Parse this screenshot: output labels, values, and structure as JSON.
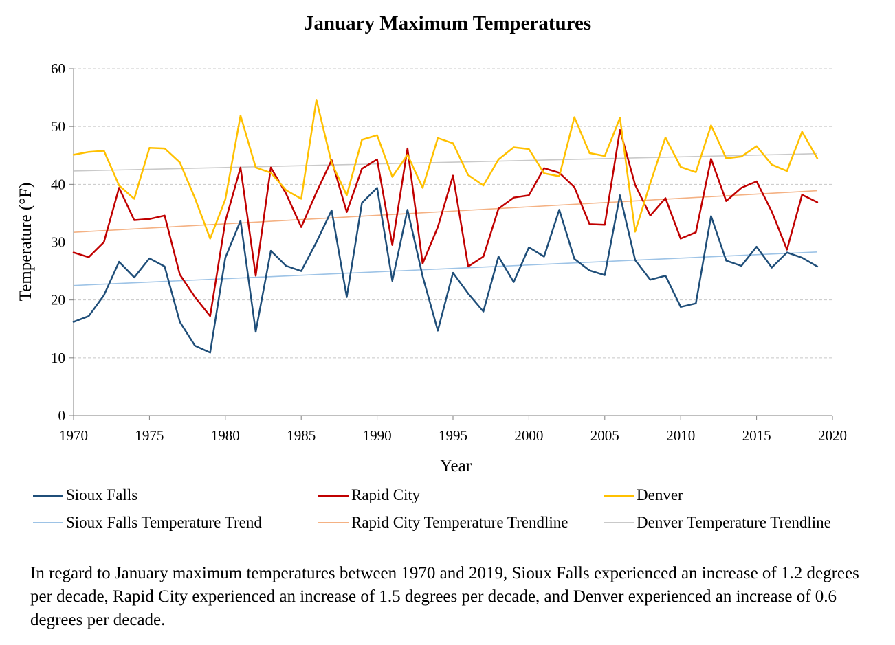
{
  "chart_data": {
    "type": "line",
    "title": "January Maximum Temperatures",
    "xlabel": "Year",
    "ylabel": "Temperature (°F)",
    "xlim": [
      1970,
      2020
    ],
    "ylim": [
      0,
      60
    ],
    "xticks": [
      1970,
      1975,
      1980,
      1985,
      1990,
      1995,
      2000,
      2005,
      2010,
      2015,
      2020
    ],
    "yticks": [
      0,
      10,
      20,
      30,
      40,
      50,
      60
    ],
    "grid": "horizontal dashed",
    "legend_position": "bottom",
    "x": [
      1970,
      1971,
      1972,
      1973,
      1974,
      1975,
      1976,
      1977,
      1978,
      1979,
      1980,
      1981,
      1982,
      1983,
      1984,
      1985,
      1986,
      1987,
      1988,
      1989,
      1990,
      1991,
      1992,
      1993,
      1994,
      1995,
      1996,
      1997,
      1998,
      1999,
      2000,
      2001,
      2002,
      2003,
      2004,
      2005,
      2006,
      2007,
      2008,
      2009,
      2010,
      2011,
      2012,
      2013,
      2014,
      2015,
      2016,
      2017,
      2018,
      2019
    ],
    "series": [
      {
        "name": "Sioux Falls",
        "color": "#1f4e79",
        "width": 2.5,
        "values": [
          16.2,
          17.2,
          20.8,
          26.6,
          23.9,
          27.2,
          25.8,
          16.2,
          12.1,
          10.9,
          27.3,
          33.7,
          14.5,
          28.5,
          25.9,
          25.0,
          30.0,
          35.5,
          20.5,
          36.8,
          39.4,
          23.3,
          35.6,
          24.1,
          14.7,
          24.7,
          21.1,
          18.0,
          27.5,
          23.1,
          29.1,
          27.5,
          35.6,
          27.1,
          25.1,
          24.3,
          38.1,
          26.9,
          23.5,
          24.2,
          18.8,
          19.4,
          34.5,
          26.8,
          25.9,
          29.2,
          25.6,
          28.2,
          27.3,
          25.8
        ]
      },
      {
        "name": "Rapid City",
        "color": "#c00000",
        "width": 2.5,
        "values": [
          28.2,
          27.4,
          30.0,
          39.4,
          33.8,
          34.0,
          34.6,
          24.4,
          20.5,
          17.2,
          33.6,
          42.9,
          24.2,
          42.9,
          38.4,
          32.6,
          38.6,
          44.2,
          35.2,
          42.7,
          44.3,
          29.5,
          46.2,
          26.3,
          32.6,
          41.5,
          25.8,
          27.5,
          35.8,
          37.7,
          38.1,
          42.8,
          42.0,
          39.5,
          33.1,
          33.0,
          49.4,
          39.9,
          34.6,
          37.6,
          30.6,
          31.7,
          44.4,
          37.1,
          39.4,
          40.5,
          35.3,
          28.7,
          38.2,
          36.9
        ]
      },
      {
        "name": "Denver",
        "color": "#ffc000",
        "width": 2.5,
        "values": [
          45.1,
          45.6,
          45.8,
          39.8,
          37.5,
          46.3,
          46.2,
          43.8,
          37.6,
          30.6,
          37.4,
          51.9,
          42.9,
          42.0,
          39.0,
          37.5,
          54.6,
          43.7,
          38.1,
          47.7,
          48.5,
          41.3,
          45.1,
          39.4,
          48.0,
          47.1,
          41.6,
          39.8,
          44.3,
          46.4,
          46.1,
          41.9,
          41.4,
          51.6,
          45.4,
          44.9,
          51.5,
          31.8,
          40.2,
          48.1,
          43.0,
          42.1,
          50.2,
          44.5,
          44.8,
          46.6,
          43.4,
          42.3,
          49.1,
          44.5
        ]
      },
      {
        "name": "Sioux Falls Temperature Trend",
        "color": "#9dc3e6",
        "width": 1.6,
        "trend": [
          22.5,
          28.3
        ]
      },
      {
        "name": "Rapid City Temperature Trendline",
        "color": "#f4b183",
        "width": 1.6,
        "trend": [
          31.7,
          38.9
        ]
      },
      {
        "name": "Denver Temperature Trendline",
        "color": "#c9c9c9",
        "width": 1.6,
        "trend": [
          42.3,
          45.3
        ]
      }
    ]
  },
  "caption": "In regard to January maximum temperatures between 1970 and 2019, Sioux Falls experienced an increase of 1.2 degrees per decade, Rapid City experienced an increase of 1.5 degrees per decade, and Denver experienced an increase of 0.6 degrees per decade."
}
